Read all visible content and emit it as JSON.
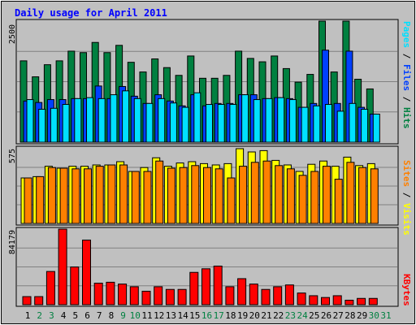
{
  "chart_data": [
    {
      "type": "bar",
      "title": "Daily usage for April 2011",
      "panel": "hits-files-pages",
      "ylabel": [
        "Pages",
        "Files",
        "Hits"
      ],
      "ytick_top": "2500",
      "ylim": [
        0,
        2500
      ],
      "categories": [
        "1",
        "2",
        "3",
        "4",
        "5",
        "6",
        "7",
        "8",
        "9",
        "10",
        "11",
        "12",
        "13",
        "14",
        "15",
        "16",
        "17",
        "18",
        "19",
        "20",
        "21",
        "22",
        "23",
        "24",
        "25",
        "26",
        "27",
        "28",
        "29",
        "30",
        "31"
      ],
      "weekend_days": [
        "2",
        "3",
        "9",
        "10",
        "16",
        "17",
        "23",
        "24",
        "30",
        "31"
      ],
      "series": [
        {
          "name": "Hits",
          "color": "#008040",
          "values": [
            1680,
            1350,
            1600,
            1680,
            1880,
            1850,
            2060,
            1850,
            2000,
            1650,
            1450,
            1720,
            1540,
            1380,
            1780,
            1320,
            1320,
            1380,
            1880,
            1730,
            1660,
            1780,
            1520,
            1240,
            1400,
            2550,
            1450,
            2550,
            1300,
            1100,
            0
          ]
        },
        {
          "name": "Files",
          "color": "#0040ff",
          "values": [
            850,
            820,
            880,
            880,
            900,
            900,
            1160,
            900,
            1150,
            950,
            800,
            980,
            850,
            750,
            980,
            750,
            800,
            800,
            980,
            980,
            900,
            920,
            900,
            720,
            800,
            1900,
            800,
            1880,
            720,
            580,
            0
          ]
        },
        {
          "name": "Pages",
          "color": "#00e0ff",
          "values": [
            880,
            680,
            700,
            780,
            900,
            920,
            900,
            980,
            1060,
            900,
            800,
            900,
            810,
            720,
            1020,
            780,
            780,
            780,
            980,
            880,
            900,
            920,
            880,
            720,
            750,
            780,
            640,
            800,
            680,
            580,
            0
          ]
        }
      ]
    },
    {
      "type": "bar",
      "panel": "visits-sites",
      "ylabel": [
        "Sites",
        "Visits"
      ],
      "ytick_top": "575",
      "ylim": [
        0,
        575
      ],
      "categories": [
        "1",
        "2",
        "3",
        "4",
        "5",
        "6",
        "7",
        "8",
        "9",
        "10",
        "11",
        "12",
        "13",
        "14",
        "15",
        "16",
        "17",
        "18",
        "19",
        "20",
        "21",
        "22",
        "23",
        "24",
        "25",
        "26",
        "27",
        "28",
        "29",
        "30",
        "31"
      ],
      "series": [
        {
          "name": "Visits",
          "color": "#ffff00",
          "values": [
            350,
            360,
            440,
            425,
            440,
            440,
            450,
            450,
            475,
            400,
            430,
            505,
            440,
            465,
            475,
            460,
            450,
            460,
            580,
            550,
            560,
            485,
            450,
            400,
            455,
            480,
            440,
            510,
            445,
            460,
            0
          ]
        },
        {
          "name": "Sites",
          "color": "#ff8000",
          "values": [
            350,
            360,
            430,
            425,
            420,
            420,
            440,
            450,
            450,
            400,
            400,
            480,
            425,
            430,
            445,
            430,
            420,
            350,
            440,
            470,
            480,
            445,
            420,
            370,
            400,
            440,
            340,
            470,
            430,
            420,
            0
          ]
        }
      ]
    },
    {
      "type": "bar",
      "panel": "kbytes",
      "ylabel": "KBytes",
      "ytick_top": "84179",
      "ylim": [
        0,
        84179
      ],
      "categories": [
        "1",
        "2",
        "3",
        "4",
        "5",
        "6",
        "7",
        "8",
        "9",
        "10",
        "11",
        "12",
        "13",
        "14",
        "15",
        "16",
        "17",
        "18",
        "19",
        "20",
        "21",
        "22",
        "23",
        "24",
        "25",
        "26",
        "27",
        "28",
        "29",
        "30",
        "31"
      ],
      "series": [
        {
          "name": "KBytes",
          "color": "#ff0000",
          "values": [
            9000,
            9000,
            37000,
            85000,
            42000,
            72000,
            24000,
            25000,
            23000,
            20000,
            15000,
            20000,
            17000,
            17000,
            36000,
            40000,
            43000,
            20000,
            29000,
            23000,
            17000,
            20000,
            22000,
            13000,
            10000,
            8000,
            10000,
            5000,
            7000,
            7000,
            0
          ]
        }
      ]
    }
  ]
}
